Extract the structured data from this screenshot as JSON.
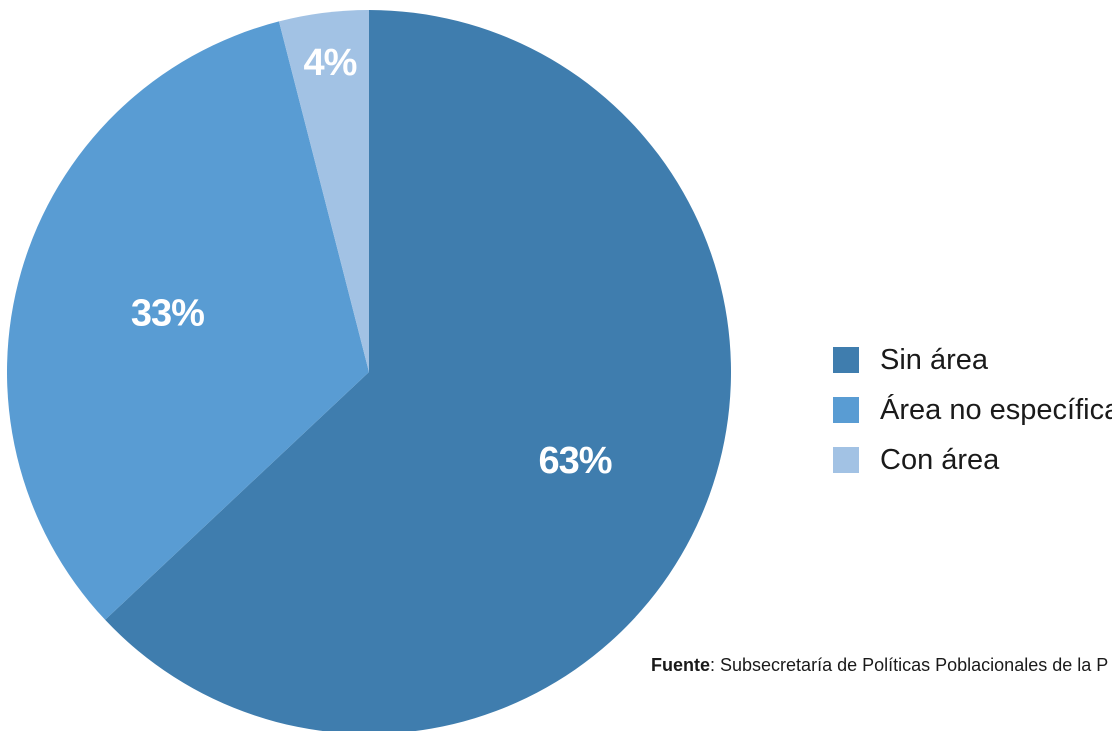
{
  "chart_data": {
    "type": "pie",
    "slices": [
      {
        "name": "Sin área",
        "value": 63,
        "label": "63%",
        "color": "#3f7dae"
      },
      {
        "name": "Área no específica",
        "value": 33,
        "label": "33%",
        "color": "#599cd3"
      },
      {
        "name": "Con área",
        "value": 4,
        "label": "4%",
        "color": "#a2c2e4"
      }
    ],
    "legend_position": "right"
  },
  "source": {
    "label": "Fuente",
    "text": ": Subsecretaría de Políticas Poblacionales de la P"
  }
}
